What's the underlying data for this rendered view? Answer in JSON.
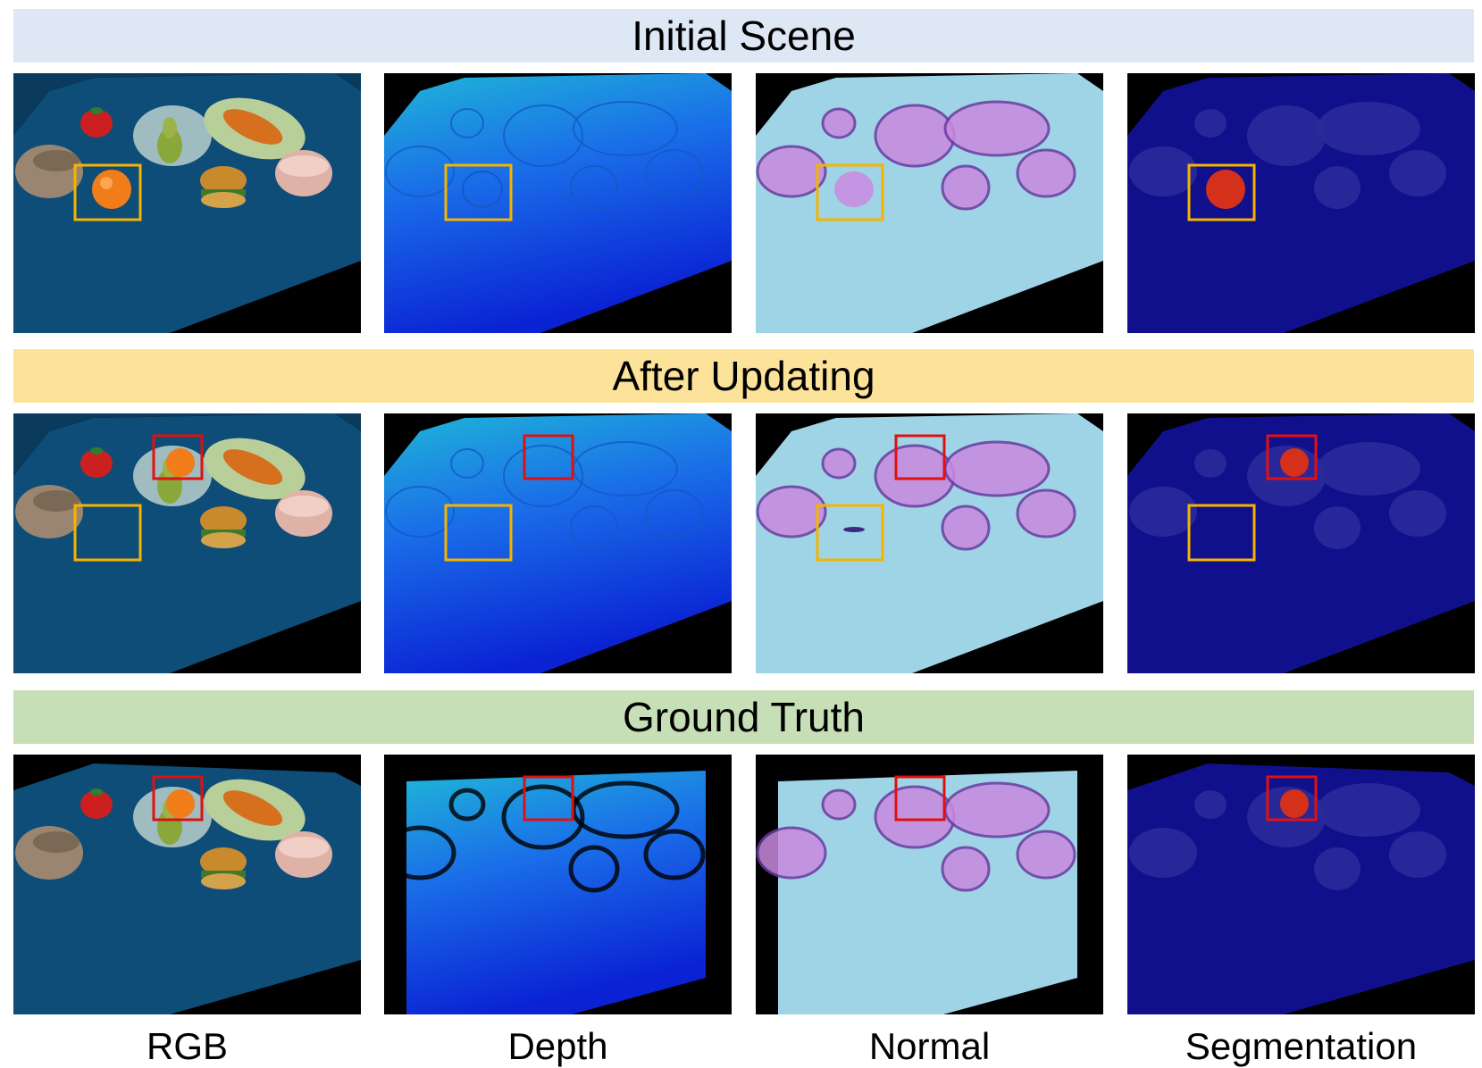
{
  "rows": [
    {
      "title": "Initial Scene",
      "color": "#dde8f4"
    },
    {
      "title": "After Updating",
      "color": "#fde39a"
    },
    {
      "title": "Ground Truth",
      "color": "#c7dfb6"
    }
  ],
  "columns": [
    "RGB",
    "Depth",
    "Normal",
    "Segmentation"
  ],
  "colors": {
    "highlight_before": "#f5b400",
    "highlight_after": "#e01010"
  }
}
